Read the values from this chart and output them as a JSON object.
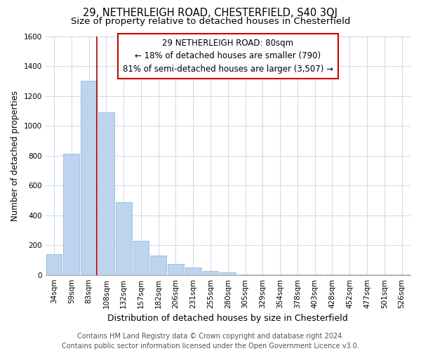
{
  "title": "29, NETHERLEIGH ROAD, CHESTERFIELD, S40 3QJ",
  "subtitle": "Size of property relative to detached houses in Chesterfield",
  "xlabel": "Distribution of detached houses by size in Chesterfield",
  "ylabel": "Number of detached properties",
  "categories": [
    "34sqm",
    "59sqm",
    "83sqm",
    "108sqm",
    "132sqm",
    "157sqm",
    "182sqm",
    "206sqm",
    "231sqm",
    "255sqm",
    "280sqm",
    "305sqm",
    "329sqm",
    "354sqm",
    "378sqm",
    "403sqm",
    "428sqm",
    "452sqm",
    "477sqm",
    "501sqm",
    "526sqm"
  ],
  "values": [
    140,
    810,
    1300,
    1090,
    490,
    230,
    130,
    75,
    48,
    28,
    15,
    5,
    3,
    2,
    2,
    1,
    1,
    1,
    1,
    1,
    1
  ],
  "bar_color": "#bcd4ee",
  "bar_edge_color": "#9ab8d8",
  "vline_x_index": 2,
  "vline_color": "#aa0000",
  "ylim": [
    0,
    1600
  ],
  "yticks": [
    0,
    200,
    400,
    600,
    800,
    1000,
    1200,
    1400,
    1600
  ],
  "annotation_title": "29 NETHERLEIGH ROAD: 80sqm",
  "annotation_line1": "← 18% of detached houses are smaller (790)",
  "annotation_line2": "81% of semi-detached houses are larger (3,507) →",
  "box_color": "#ffffff",
  "box_edge_color": "#cc0000",
  "footer_line1": "Contains HM Land Registry data © Crown copyright and database right 2024.",
  "footer_line2": "Contains public sector information licensed under the Open Government Licence v3.0.",
  "title_fontsize": 10.5,
  "subtitle_fontsize": 9.5,
  "xlabel_fontsize": 9,
  "ylabel_fontsize": 8.5,
  "tick_fontsize": 7.5,
  "annotation_fontsize": 8.5,
  "footer_fontsize": 7,
  "background_color": "#ffffff",
  "grid_color": "#ccd8ec"
}
